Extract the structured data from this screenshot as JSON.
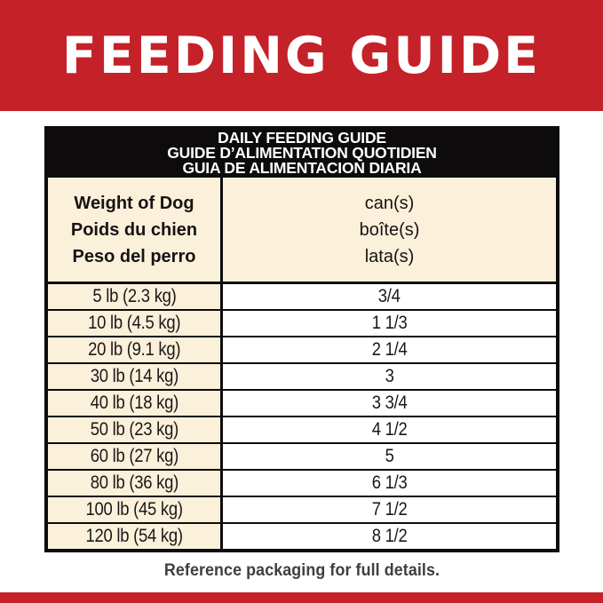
{
  "banner": {
    "title": "FEEDING GUIDE"
  },
  "table": {
    "title_lines": [
      "DAILY FEEDING GUIDE",
      "GUIDE D’ALIMENTATION QUOTIDIEN",
      "GUIA DE ALIMENTACION DIARIA"
    ],
    "header": {
      "weight_lines": [
        "Weight of Dog",
        "Poids du chien",
        "Peso del perro"
      ],
      "cans_lines": [
        "can(s)",
        "boîte(s)",
        "lata(s)"
      ]
    },
    "rows": [
      {
        "weight": "5 lb (2.3 kg)",
        "cans": "3/4"
      },
      {
        "weight": "10 lb (4.5 kg)",
        "cans": "1 1/3"
      },
      {
        "weight": "20 lb (9.1 kg)",
        "cans": "2 1/4"
      },
      {
        "weight": "30 lb (14 kg)",
        "cans": "3"
      },
      {
        "weight": "40 lb (18 kg)",
        "cans": "3 3/4"
      },
      {
        "weight": "50 lb (23 kg)",
        "cans": "4 1/2"
      },
      {
        "weight": "60 lb (27 kg)",
        "cans": "5"
      },
      {
        "weight": "80 lb (36 kg)",
        "cans": "6 1/3"
      },
      {
        "weight": "100 lb (45 kg)",
        "cans": "7 1/2"
      },
      {
        "weight": "120 lb (54 kg)",
        "cans": "8 1/2"
      }
    ]
  },
  "footer": {
    "note": "Reference packaging for full details."
  },
  "colors": {
    "red": "#c52129",
    "black": "#0e0b0c",
    "cream": "#fbf0da",
    "white": "#ffffff",
    "text": "#1a1818",
    "footer_text": "#3c4040"
  }
}
